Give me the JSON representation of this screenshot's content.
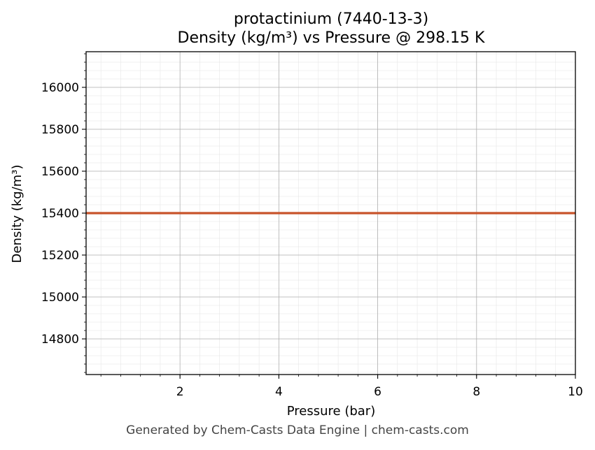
{
  "chart_data": {
    "type": "line",
    "title": "protactinium (7440-13-3)",
    "subtitle": "Density (kg/m³) vs Pressure @ 298.15 K",
    "xlabel": "Pressure (bar)",
    "ylabel": "Density (kg/m³)",
    "xlim": [
      0.1,
      10
    ],
    "ylim": [
      14630,
      16170
    ],
    "xticks": [
      2,
      4,
      6,
      8,
      10
    ],
    "yticks": [
      14800,
      15000,
      15200,
      15400,
      15600,
      15800,
      16000
    ],
    "grid": true,
    "series": [
      {
        "color": "#c8532a",
        "x": [
          0.1,
          10
        ],
        "y": [
          15400,
          15400
        ]
      }
    ]
  },
  "footer": "Generated by Chem-Casts Data Engine | chem-casts.com"
}
